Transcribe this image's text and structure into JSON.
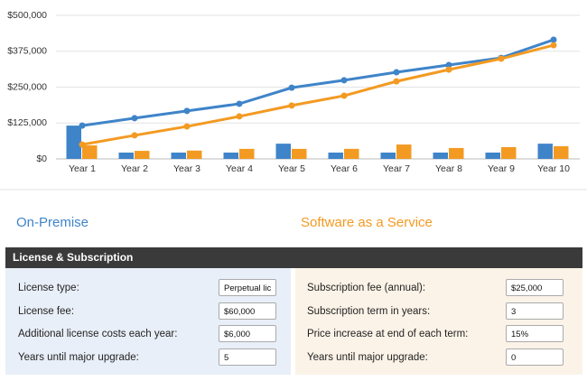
{
  "chart_data": {
    "type": "combo",
    "categories": [
      "Year 1",
      "Year 2",
      "Year 3",
      "Year 4",
      "Year 5",
      "Year 6",
      "Year 7",
      "Year 8",
      "Year 9",
      "Year 10"
    ],
    "series": [
      {
        "type": "bar",
        "color": "#3f84c9",
        "values": [
          116000,
          22000,
          22000,
          22000,
          53000,
          22000,
          22000,
          22000,
          22000,
          53000
        ]
      },
      {
        "type": "bar",
        "color": "#f39a22",
        "values": [
          47000,
          28000,
          29000,
          35000,
          35000,
          35000,
          50000,
          38000,
          41000,
          44000
        ]
      },
      {
        "type": "line",
        "color": "#3f84c9",
        "values": [
          116000,
          142000,
          167000,
          192000,
          248000,
          274000,
          302000,
          327000,
          352000,
          415000
        ]
      },
      {
        "type": "line",
        "color": "#f39a22",
        "values": [
          50000,
          82000,
          113000,
          148000,
          186000,
          220000,
          270000,
          311000,
          349000,
          396000
        ]
      }
    ],
    "ylim": [
      0,
      500000
    ],
    "yticks": [
      {
        "value": 0,
        "label": "$0"
      },
      {
        "value": 125000,
        "label": "$125,000"
      },
      {
        "value": 250000,
        "label": "$250,000"
      },
      {
        "value": 375000,
        "label": "$375,000"
      },
      {
        "value": 500000,
        "label": "$500,000"
      }
    ],
    "grid": true
  },
  "on_premise": {
    "heading": "On-Premise",
    "fields": [
      {
        "label": "License type:",
        "value": "Perpetual lic"
      },
      {
        "label": "License fee:",
        "value": "$60,000"
      },
      {
        "label": "Additional license costs each year:",
        "value": "$6,000"
      },
      {
        "label": "Years until major upgrade:",
        "value": "5"
      }
    ]
  },
  "saas": {
    "heading": "Software as a Service",
    "fields": [
      {
        "label": "Subscription fee (annual):",
        "value": "$25,000"
      },
      {
        "label": "Subscription term in years:",
        "value": "3"
      },
      {
        "label": "Price increase at end of each term:",
        "value": "15%"
      },
      {
        "label": "Years until major upgrade:",
        "value": "0"
      }
    ]
  },
  "section_title": "License & Subscription"
}
